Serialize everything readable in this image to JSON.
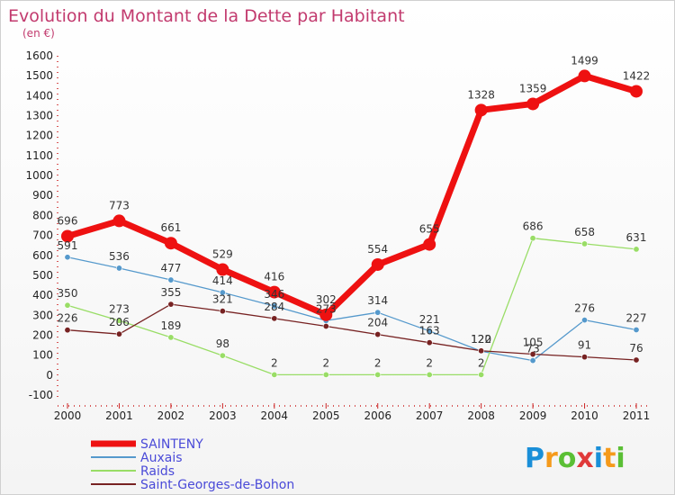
{
  "chart_data": {
    "type": "line",
    "title": "Evolution du Montant de la Dette par Habitant",
    "subtitle": "(en €)",
    "x": [
      "2000",
      "2001",
      "2002",
      "2003",
      "2004",
      "2005",
      "2006",
      "2007",
      "2008",
      "2009",
      "2010",
      "2011"
    ],
    "ylim": [
      -100,
      1600
    ],
    "yticks": [
      -100,
      0,
      100,
      200,
      300,
      400,
      500,
      600,
      700,
      800,
      900,
      1000,
      1100,
      1200,
      1300,
      1400,
      1500,
      1600
    ],
    "grid": false,
    "legend_position": "bottom-left",
    "series": [
      {
        "name": "SAINTENY",
        "color": "#ee1111",
        "width": 7,
        "marker": 7,
        "values": [
          696,
          773,
          661,
          529,
          416,
          302,
          554,
          655,
          1328,
          1359,
          1499,
          1422
        ],
        "labels": [
          true,
          true,
          true,
          true,
          true,
          true,
          true,
          true,
          true,
          true,
          true,
          true
        ]
      },
      {
        "name": "Auxais",
        "color": "#5599cc",
        "width": 1.3,
        "marker": 3.2,
        "values": [
          591,
          536,
          477,
          414,
          346,
          273,
          314,
          221,
          120,
          73,
          276,
          227
        ],
        "labels": [
          true,
          true,
          true,
          true,
          true,
          true,
          true,
          true,
          true,
          true,
          true,
          true
        ]
      },
      {
        "name": "Raids",
        "color": "#99dd66",
        "width": 1.3,
        "marker": 3.2,
        "values": [
          350,
          273,
          189,
          98,
          2,
          2,
          2,
          2,
          2,
          686,
          658,
          631
        ],
        "labels": [
          true,
          true,
          true,
          true,
          true,
          true,
          true,
          true,
          true,
          true,
          true,
          true
        ]
      },
      {
        "name": "Saint-Georges-de-Bohon",
        "color": "#772222",
        "width": 1.3,
        "marker": 3.2,
        "values": [
          226,
          206,
          355,
          321,
          284,
          245,
          204,
          163,
          122,
          105,
          91,
          76
        ],
        "labels": [
          true,
          true,
          true,
          true,
          true,
          false,
          true,
          true,
          true,
          true,
          true,
          true
        ]
      }
    ]
  },
  "logo": {
    "text": "Proxiti"
  }
}
